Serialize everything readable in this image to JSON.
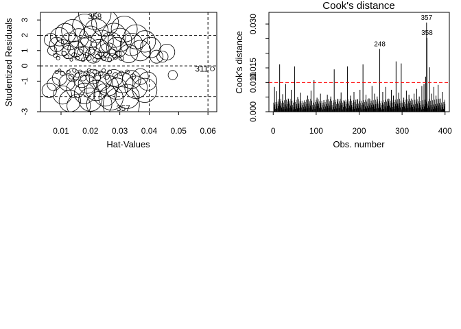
{
  "chart_data": [
    {
      "type": "scatter",
      "title": "",
      "xlabel": "Hat-Values",
      "ylabel": "Studentized Residuals",
      "xlim": [
        0.003,
        0.063
      ],
      "ylim": [
        -3.0,
        3.5
      ],
      "x_ticks": [
        0.01,
        0.02,
        0.03,
        0.04,
        0.05,
        0.06
      ],
      "x_tick_labels": [
        "0.01",
        "0.02",
        "0.03",
        "0.04",
        "0.05",
        "0.06"
      ],
      "y_ticks": [
        -3,
        -1,
        0,
        1,
        2,
        3
      ],
      "y_tick_labels": [
        "-3",
        "-1",
        "0",
        "1",
        "2",
        "3"
      ],
      "grid": false,
      "marker": "open circle, area proportional to Cook's distance",
      "reference_lines": {
        "vertical": [
          0.04,
          0.06
        ],
        "horizontal": [
          -2,
          0,
          2
        ],
        "style": "dashed"
      },
      "labeled_points": [
        {
          "label": "358",
          "x": 0.0215,
          "y": 3.45,
          "cooks": 0.025
        },
        {
          "label": "357",
          "x": 0.0305,
          "y": -2.55,
          "cooks": 0.031
        },
        {
          "label": "311",
          "x": 0.0615,
          "y": -0.2,
          "cooks": 0.0004
        }
      ],
      "points": [
        {
          "x": 0.0065,
          "y": 1.7,
          "cooks": 0.004
        },
        {
          "x": 0.007,
          "y": 1.0,
          "cooks": 0.002
        },
        {
          "x": 0.0085,
          "y": 1.4,
          "cooks": 0.005
        },
        {
          "x": 0.0095,
          "y": 1.9,
          "cooks": 0.008
        },
        {
          "x": 0.0105,
          "y": 1.2,
          "cooks": 0.006
        },
        {
          "x": 0.0115,
          "y": 2.1,
          "cooks": 0.01
        },
        {
          "x": 0.0125,
          "y": 0.9,
          "cooks": 0.004
        },
        {
          "x": 0.013,
          "y": 1.6,
          "cooks": 0.007
        },
        {
          "x": 0.014,
          "y": 2.3,
          "cooks": 0.012
        },
        {
          "x": 0.015,
          "y": 1.1,
          "cooks": 0.006
        },
        {
          "x": 0.016,
          "y": 1.8,
          "cooks": 0.009
        },
        {
          "x": 0.017,
          "y": 0.8,
          "cooks": 0.005
        },
        {
          "x": 0.018,
          "y": 2.6,
          "cooks": 0.014
        },
        {
          "x": 0.019,
          "y": 1.3,
          "cooks": 0.008
        },
        {
          "x": 0.02,
          "y": 1.9,
          "cooks": 0.011
        },
        {
          "x": 0.021,
          "y": 0.7,
          "cooks": 0.006
        },
        {
          "x": 0.022,
          "y": 2.3,
          "cooks": 0.013
        },
        {
          "x": 0.023,
          "y": 1.1,
          "cooks": 0.009
        },
        {
          "x": 0.024,
          "y": 1.6,
          "cooks": 0.012
        },
        {
          "x": 0.025,
          "y": 2.8,
          "cooks": 0.017
        },
        {
          "x": 0.026,
          "y": 0.9,
          "cooks": 0.008
        },
        {
          "x": 0.027,
          "y": 1.5,
          "cooks": 0.011
        },
        {
          "x": 0.028,
          "y": 2.0,
          "cooks": 0.014
        },
        {
          "x": 0.029,
          "y": 1.2,
          "cooks": 0.01
        },
        {
          "x": 0.03,
          "y": 1.7,
          "cooks": 0.013
        },
        {
          "x": 0.0315,
          "y": 2.4,
          "cooks": 0.016
        },
        {
          "x": 0.033,
          "y": 0.8,
          "cooks": 0.008
        },
        {
          "x": 0.034,
          "y": 1.4,
          "cooks": 0.012
        },
        {
          "x": 0.0355,
          "y": 1.9,
          "cooks": 0.014
        },
        {
          "x": 0.037,
          "y": 1.0,
          "cooks": 0.01
        },
        {
          "x": 0.0385,
          "y": 1.6,
          "cooks": 0.011
        },
        {
          "x": 0.0405,
          "y": 1.2,
          "cooks": 0.01
        },
        {
          "x": 0.0425,
          "y": 0.6,
          "cooks": 0.004
        },
        {
          "x": 0.046,
          "y": 0.9,
          "cooks": 0.006
        },
        {
          "x": 0.0445,
          "y": 0.6,
          "cooks": 0.003
        },
        {
          "x": 0.006,
          "y": -1.6,
          "cooks": 0.005
        },
        {
          "x": 0.0075,
          "y": -1.2,
          "cooks": 0.004
        },
        {
          "x": 0.0095,
          "y": -0.8,
          "cooks": 0.005
        },
        {
          "x": 0.0105,
          "y": -1.9,
          "cooks": 0.008
        },
        {
          "x": 0.012,
          "y": -1.1,
          "cooks": 0.006
        },
        {
          "x": 0.013,
          "y": -2.3,
          "cooks": 0.011
        },
        {
          "x": 0.014,
          "y": -0.6,
          "cooks": 0.004
        },
        {
          "x": 0.015,
          "y": -1.5,
          "cooks": 0.008
        },
        {
          "x": 0.016,
          "y": -2.6,
          "cooks": 0.013
        },
        {
          "x": 0.017,
          "y": -0.9,
          "cooks": 0.006
        },
        {
          "x": 0.018,
          "y": -1.8,
          "cooks": 0.01
        },
        {
          "x": 0.019,
          "y": -1.2,
          "cooks": 0.008
        },
        {
          "x": 0.02,
          "y": -2.2,
          "cooks": 0.013
        },
        {
          "x": 0.021,
          "y": -0.7,
          "cooks": 0.005
        },
        {
          "x": 0.022,
          "y": -1.6,
          "cooks": 0.01
        },
        {
          "x": 0.023,
          "y": -2.5,
          "cooks": 0.015
        },
        {
          "x": 0.024,
          "y": -1.0,
          "cooks": 0.008
        },
        {
          "x": 0.025,
          "y": -1.9,
          "cooks": 0.012
        },
        {
          "x": 0.026,
          "y": -1.3,
          "cooks": 0.01
        },
        {
          "x": 0.027,
          "y": -2.1,
          "cooks": 0.014
        },
        {
          "x": 0.028,
          "y": -0.8,
          "cooks": 0.007
        },
        {
          "x": 0.029,
          "y": -1.5,
          "cooks": 0.011
        },
        {
          "x": 0.031,
          "y": -1.1,
          "cooks": 0.01
        },
        {
          "x": 0.0325,
          "y": -2.0,
          "cooks": 0.014
        },
        {
          "x": 0.034,
          "y": -0.9,
          "cooks": 0.008
        },
        {
          "x": 0.0355,
          "y": -1.4,
          "cooks": 0.012
        },
        {
          "x": 0.037,
          "y": -0.7,
          "cooks": 0.006
        },
        {
          "x": 0.0385,
          "y": -1.6,
          "cooks": 0.014
        },
        {
          "x": 0.0395,
          "y": -1.0,
          "cooks": 0.008
        },
        {
          "x": 0.048,
          "y": -0.6,
          "cooks": 0.002
        },
        {
          "x": 0.008,
          "y": 0.7,
          "cooks": 0.0004
        },
        {
          "x": 0.009,
          "y": 0.5,
          "cooks": 0.0003
        },
        {
          "x": 0.011,
          "y": 0.8,
          "cooks": 0.0005
        },
        {
          "x": 0.012,
          "y": 0.6,
          "cooks": 0.0004
        },
        {
          "x": 0.0135,
          "y": 0.4,
          "cooks": 0.0002
        },
        {
          "x": 0.0145,
          "y": 0.7,
          "cooks": 0.0006
        },
        {
          "x": 0.0155,
          "y": 0.5,
          "cooks": 0.0004
        },
        {
          "x": 0.0165,
          "y": 0.9,
          "cooks": 0.0008
        },
        {
          "x": 0.0175,
          "y": 0.4,
          "cooks": 0.0003
        },
        {
          "x": 0.0185,
          "y": 0.7,
          "cooks": 0.0007
        },
        {
          "x": 0.0195,
          "y": 0.5,
          "cooks": 0.0005
        },
        {
          "x": 0.0205,
          "y": 0.9,
          "cooks": 0.0009
        },
        {
          "x": 0.0215,
          "y": 0.4,
          "cooks": 0.0004
        },
        {
          "x": 0.0225,
          "y": 0.6,
          "cooks": 0.0006
        },
        {
          "x": 0.0235,
          "y": 0.8,
          "cooks": 0.0008
        },
        {
          "x": 0.0245,
          "y": 0.5,
          "cooks": 0.0005
        },
        {
          "x": 0.0255,
          "y": 0.7,
          "cooks": 0.0007
        },
        {
          "x": 0.0265,
          "y": 0.4,
          "cooks": 0.0004
        },
        {
          "x": 0.0275,
          "y": 0.9,
          "cooks": 0.001
        },
        {
          "x": 0.0285,
          "y": 0.6,
          "cooks": 0.0006
        },
        {
          "x": 0.0295,
          "y": 0.8,
          "cooks": 0.0008
        },
        {
          "x": 0.0305,
          "y": 0.5,
          "cooks": 0.0005
        },
        {
          "x": 0.0085,
          "y": -0.4,
          "cooks": 0.0003
        },
        {
          "x": 0.0095,
          "y": -0.3,
          "cooks": 0.0002
        },
        {
          "x": 0.0105,
          "y": -0.5,
          "cooks": 0.0004
        },
        {
          "x": 0.0125,
          "y": -0.4,
          "cooks": 0.0003
        },
        {
          "x": 0.0135,
          "y": -0.7,
          "cooks": 0.0006
        },
        {
          "x": 0.0145,
          "y": -0.3,
          "cooks": 0.0003
        },
        {
          "x": 0.0155,
          "y": -0.6,
          "cooks": 0.0005
        },
        {
          "x": 0.0165,
          "y": -0.4,
          "cooks": 0.0004
        },
        {
          "x": 0.0175,
          "y": -0.8,
          "cooks": 0.0008
        },
        {
          "x": 0.0185,
          "y": -0.5,
          "cooks": 0.0005
        },
        {
          "x": 0.0195,
          "y": -0.3,
          "cooks": 0.0003
        },
        {
          "x": 0.0205,
          "y": -0.6,
          "cooks": 0.0006
        },
        {
          "x": 0.0215,
          "y": -0.4,
          "cooks": 0.0004
        },
        {
          "x": 0.0225,
          "y": -0.8,
          "cooks": 0.0008
        },
        {
          "x": 0.0235,
          "y": -0.5,
          "cooks": 0.0005
        },
        {
          "x": 0.0245,
          "y": -0.3,
          "cooks": 0.0003
        },
        {
          "x": 0.0255,
          "y": -0.7,
          "cooks": 0.0007
        },
        {
          "x": 0.0265,
          "y": -0.4,
          "cooks": 0.0004
        },
        {
          "x": 0.0285,
          "y": -0.6,
          "cooks": 0.0006
        },
        {
          "x": 0.0305,
          "y": -0.5,
          "cooks": 0.0005
        },
        {
          "x": 0.0325,
          "y": -0.4,
          "cooks": 0.0004
        },
        {
          "x": 0.0345,
          "y": -0.7,
          "cooks": 0.0007
        }
      ]
    },
    {
      "type": "bar",
      "subtype": "spike (histogram-type)",
      "title": "Cook's distance",
      "xlabel": "Obs. number",
      "ylabel": "Cook's distance",
      "xlim": [
        -10,
        410
      ],
      "ylim": [
        0,
        0.034
      ],
      "x_ticks": [
        0,
        100,
        200,
        300,
        400
      ],
      "x_tick_labels": [
        "0",
        "100",
        "200",
        "300",
        "400"
      ],
      "y_ticks": [
        0.0,
        0.005,
        0.01,
        0.015,
        0.02,
        0.025,
        0.03
      ],
      "y_tick_labels": [
        "0.000",
        "",
        "0.010",
        "0.015",
        "",
        "",
        "0.030"
      ],
      "grid": false,
      "n_obs": 400,
      "threshold": {
        "value": 0.01,
        "color": "#ff0000",
        "style": "dashed"
      },
      "labeled_points": [
        {
          "label": "248",
          "x": 248,
          "y": 0.0215
        },
        {
          "label": "357",
          "x": 357,
          "y": 0.0305
        },
        {
          "label": "358",
          "x": 358,
          "y": 0.0253
        }
      ],
      "spikes": [
        {
          "x": 3,
          "y": 0.0085
        },
        {
          "x": 8,
          "y": 0.007
        },
        {
          "x": 15,
          "y": 0.0162
        },
        {
          "x": 22,
          "y": 0.006
        },
        {
          "x": 29,
          "y": 0.0095
        },
        {
          "x": 35,
          "y": 0.0045
        },
        {
          "x": 42,
          "y": 0.0075
        },
        {
          "x": 50,
          "y": 0.0155
        },
        {
          "x": 57,
          "y": 0.005
        },
        {
          "x": 64,
          "y": 0.0065
        },
        {
          "x": 72,
          "y": 0.0035
        },
        {
          "x": 80,
          "y": 0.0055
        },
        {
          "x": 88,
          "y": 0.0072
        },
        {
          "x": 95,
          "y": 0.0108
        },
        {
          "x": 102,
          "y": 0.0048
        },
        {
          "x": 110,
          "y": 0.0062
        },
        {
          "x": 118,
          "y": 0.004
        },
        {
          "x": 126,
          "y": 0.0058
        },
        {
          "x": 134,
          "y": 0.0052
        },
        {
          "x": 142,
          "y": 0.0145
        },
        {
          "x": 150,
          "y": 0.0044
        },
        {
          "x": 158,
          "y": 0.0066
        },
        {
          "x": 166,
          "y": 0.0038
        },
        {
          "x": 173,
          "y": 0.0155
        },
        {
          "x": 180,
          "y": 0.0055
        },
        {
          "x": 188,
          "y": 0.0068
        },
        {
          "x": 195,
          "y": 0.0042
        },
        {
          "x": 202,
          "y": 0.0075
        },
        {
          "x": 209,
          "y": 0.0162
        },
        {
          "x": 216,
          "y": 0.0058
        },
        {
          "x": 223,
          "y": 0.0046
        },
        {
          "x": 230,
          "y": 0.0088
        },
        {
          "x": 236,
          "y": 0.0062
        },
        {
          "x": 242,
          "y": 0.0052
        },
        {
          "x": 248,
          "y": 0.0215
        },
        {
          "x": 255,
          "y": 0.0068
        },
        {
          "x": 262,
          "y": 0.0085
        },
        {
          "x": 268,
          "y": 0.0045
        },
        {
          "x": 275,
          "y": 0.0075
        },
        {
          "x": 280,
          "y": 0.0055
        },
        {
          "x": 286,
          "y": 0.0172
        },
        {
          "x": 292,
          "y": 0.0065
        },
        {
          "x": 298,
          "y": 0.0165
        },
        {
          "x": 304,
          "y": 0.0048
        },
        {
          "x": 310,
          "y": 0.0072
        },
        {
          "x": 316,
          "y": 0.0058
        },
        {
          "x": 322,
          "y": 0.0045
        },
        {
          "x": 328,
          "y": 0.0062
        },
        {
          "x": 334,
          "y": 0.0078
        },
        {
          "x": 340,
          "y": 0.0052
        },
        {
          "x": 346,
          "y": 0.0088
        },
        {
          "x": 351,
          "y": 0.0095
        },
        {
          "x": 355,
          "y": 0.012
        },
        {
          "x": 357,
          "y": 0.0305
        },
        {
          "x": 358,
          "y": 0.0253
        },
        {
          "x": 364,
          "y": 0.0152
        },
        {
          "x": 369,
          "y": 0.0062
        },
        {
          "x": 374,
          "y": 0.0085
        },
        {
          "x": 379,
          "y": 0.0055
        },
        {
          "x": 384,
          "y": 0.0092
        },
        {
          "x": 389,
          "y": 0.0045
        },
        {
          "x": 394,
          "y": 0.0068
        },
        {
          "x": 399,
          "y": 0.0035
        }
      ]
    }
  ]
}
